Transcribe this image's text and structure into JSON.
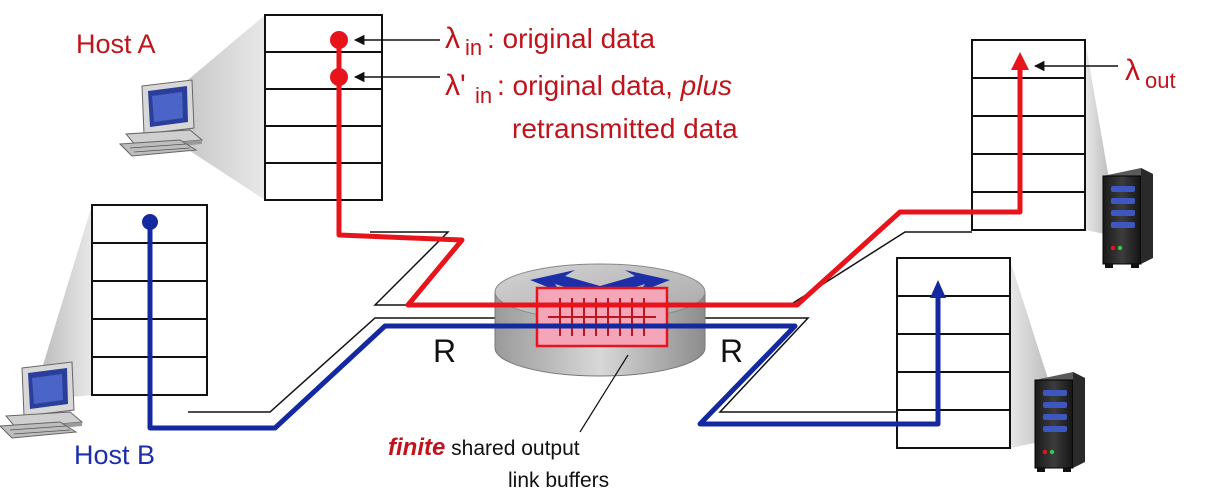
{
  "hosts": {
    "host_a": "Host A",
    "host_b": "Host B"
  },
  "rates": {
    "lambda_in": {
      "symbol": "λ",
      "sub": "in",
      "desc": ": original data"
    },
    "lambda_in_prime": {
      "symbol": "λ'",
      "sub": "in",
      "desc_prefix": ": original data, ",
      "desc_italic": "plus",
      "desc_line2": "retransmitted data"
    },
    "lambda_out": {
      "symbol": "λ",
      "sub": "out"
    }
  },
  "links": {
    "left_capacity": "R",
    "right_capacity": "R"
  },
  "router_caption": {
    "emphasis": "finite",
    "rest": " shared output",
    "line2": "link buffers"
  },
  "colors": {
    "host_a_flow": "#e8141c",
    "host_b_flow": "#1428a0",
    "label_red": "#c0141c",
    "label_blue": "#1c2fa8",
    "buffer_fill": "#f4a6b8"
  },
  "icons": {
    "host_a_device": "desktop-computer-icon",
    "host_b_device": "desktop-computer-icon",
    "server_top": "server-tower-icon",
    "server_bottom": "server-tower-icon"
  }
}
